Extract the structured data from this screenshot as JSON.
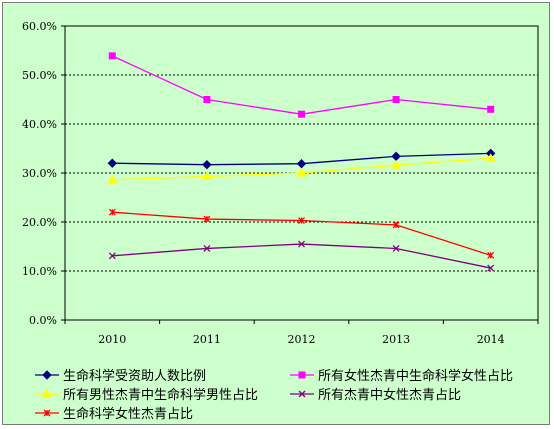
{
  "chart_data": {
    "type": "line",
    "title": "",
    "xlabel": "",
    "ylabel": "",
    "categories": [
      "2010",
      "2011",
      "2012",
      "2013",
      "2014"
    ],
    "y_ticks": [
      "0.0%",
      "10.0%",
      "20.0%",
      "30.0%",
      "40.0%",
      "50.0%",
      "60.0%"
    ],
    "ylim": [
      0,
      60
    ],
    "grid": true,
    "legend_position": "bottom",
    "series": [
      {
        "name": "生命科学受资助人数比例",
        "values": [
          32.0,
          31.7,
          31.9,
          33.4,
          34.0
        ],
        "color": "#000080",
        "marker": "diamond"
      },
      {
        "name": "所有女性杰青中生命科学女性占比",
        "values": [
          53.9,
          45.0,
          42.0,
          45.0,
          43.0
        ],
        "color": "#ff00ff",
        "marker": "square"
      },
      {
        "name": "所有男性杰青中生命科学男性占比",
        "values": [
          28.6,
          29.3,
          30.0,
          31.6,
          33.0
        ],
        "color": "#ffff00",
        "marker": "triangle"
      },
      {
        "name": "所有杰青中女性杰青占比",
        "values": [
          13.1,
          14.6,
          15.5,
          14.6,
          10.6
        ],
        "color": "#800080",
        "marker": "x"
      },
      {
        "name": "生命科学女性杰青占比",
        "values": [
          22.0,
          20.6,
          20.3,
          19.4,
          13.2
        ],
        "color": "#ff0000",
        "marker": "star"
      }
    ]
  }
}
